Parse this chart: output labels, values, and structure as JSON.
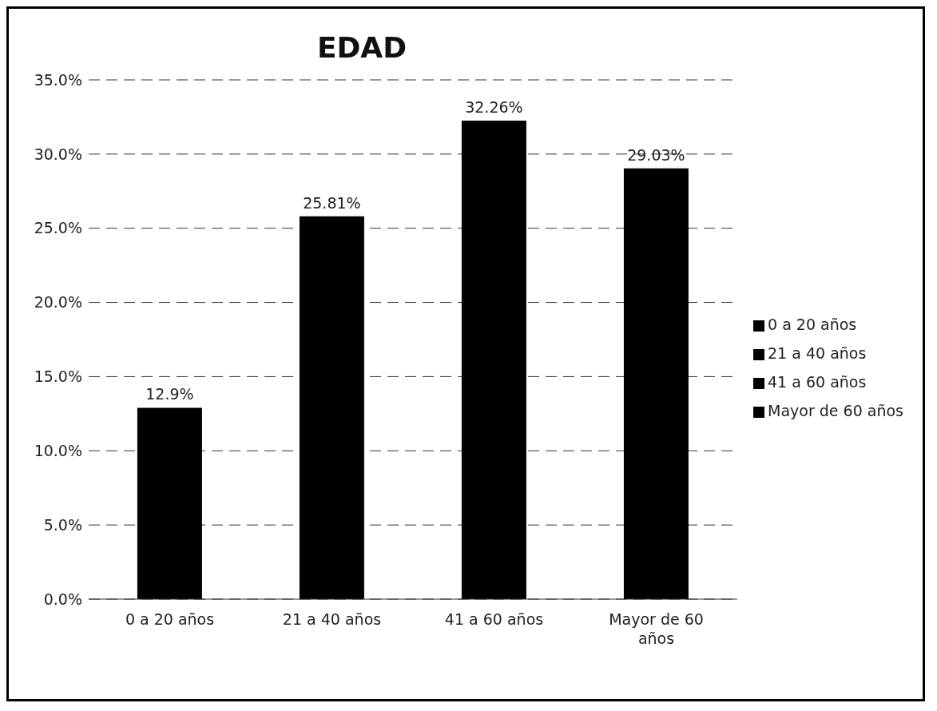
{
  "chart_data": {
    "type": "bar",
    "title": "EDAD",
    "stacked": true,
    "categories": [
      "0 a 20 años",
      "21 a 40 años",
      "41 a 60 años",
      "Mayor de 60 años"
    ],
    "series": [
      {
        "name": "0 a 20 años",
        "color": "#000000",
        "values": [
          12.9,
          null,
          null,
          null
        ],
        "value_labels": [
          "12.9%",
          null,
          null,
          null
        ]
      },
      {
        "name": "21 a 40 años",
        "color": "#000000",
        "values": [
          null,
          25.81,
          null,
          null
        ],
        "value_labels": [
          null,
          "25.81%",
          null,
          null
        ]
      },
      {
        "name": "41 a 60 años",
        "color": "#000000",
        "values": [
          null,
          null,
          32.26,
          null
        ],
        "value_labels": [
          null,
          null,
          "32.26%",
          null
        ]
      },
      {
        "name": "Mayor de 60 años",
        "color": "#000000",
        "values": [
          null,
          null,
          null,
          29.03
        ],
        "value_labels": [
          null,
          null,
          null,
          "29.03%"
        ]
      }
    ],
    "ylim": [
      0,
      35
    ],
    "yticks": [
      {
        "value": 0,
        "label": "0.0%"
      },
      {
        "value": 5,
        "label": "5.0%"
      },
      {
        "value": 10,
        "label": "10.0%"
      },
      {
        "value": 15,
        "label": "15.0%"
      },
      {
        "value": 20,
        "label": "20.0%"
      },
      {
        "value": 25,
        "label": "25.0%"
      },
      {
        "value": 30,
        "label": "30.0%"
      },
      {
        "value": 35,
        "label": "35.0%"
      }
    ],
    "grid": "y",
    "legend": "right"
  }
}
